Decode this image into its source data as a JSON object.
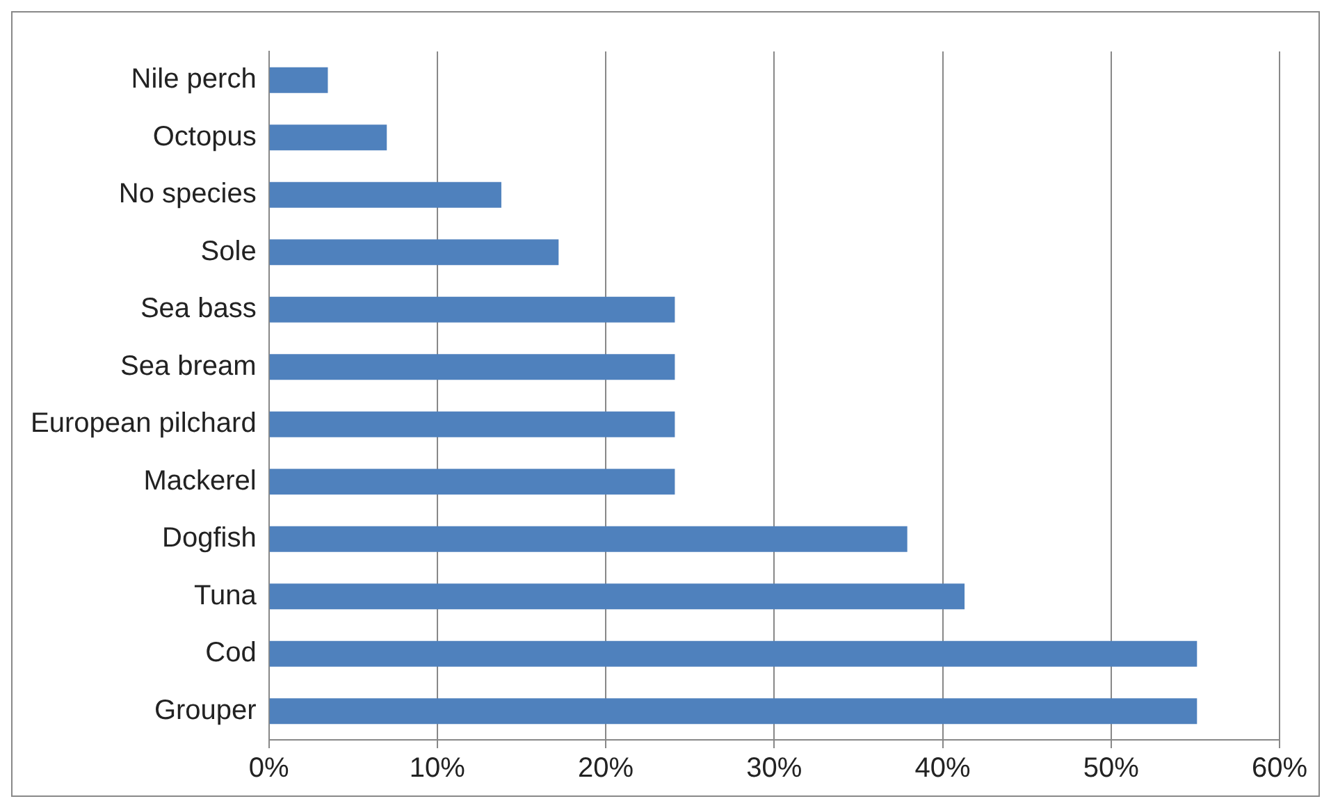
{
  "chart_data": {
    "type": "bar",
    "orientation": "horizontal",
    "categories": [
      "Nile perch",
      "Octopus",
      "No species",
      "Sole",
      "Sea bass",
      "Sea bream",
      "European pilchard",
      "Mackerel",
      "Dogfish",
      "Tuna",
      "Cod",
      "Grouper"
    ],
    "values": [
      3.5,
      7.0,
      13.8,
      17.2,
      24.1,
      24.1,
      24.1,
      24.1,
      37.9,
      41.3,
      55.1,
      55.1
    ],
    "color": "#4f81bd",
    "xlim": [
      0,
      60
    ],
    "xticks": [
      {
        "value": 0,
        "label": "0%"
      },
      {
        "value": 10,
        "label": "10%"
      },
      {
        "value": 20,
        "label": "20%"
      },
      {
        "value": 30,
        "label": "30%"
      },
      {
        "value": 40,
        "label": "40%"
      },
      {
        "value": 50,
        "label": "50%"
      },
      {
        "value": 60,
        "label": "60%"
      }
    ],
    "grid": "x",
    "legend": false
  }
}
